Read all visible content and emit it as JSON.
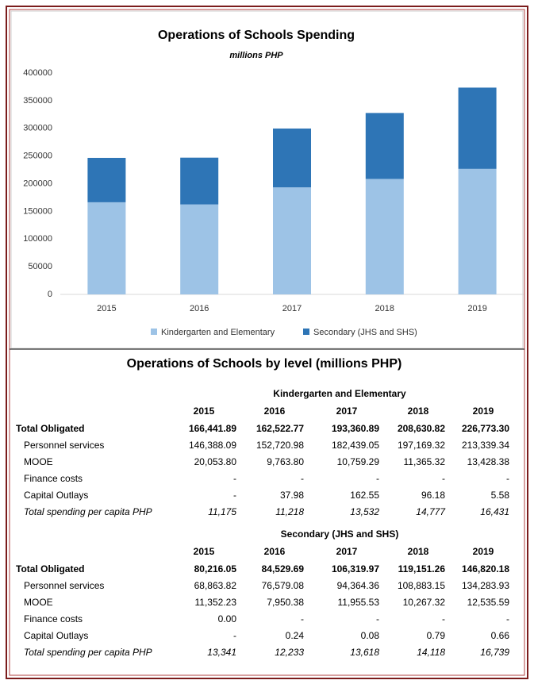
{
  "chart_data": {
    "type": "bar",
    "stacked": true,
    "title": "Operations of Schools Spending",
    "subtitle": "millions PHP",
    "categories": [
      "2015",
      "2016",
      "2017",
      "2018",
      "2019"
    ],
    "series": [
      {
        "name": "Kindergarten and Elementary",
        "color": "#9dc3e6",
        "values": [
          166441.89,
          162522.77,
          193360.89,
          208630.82,
          226773.3
        ]
      },
      {
        "name": "Secondary (JHS and SHS)",
        "color": "#2e75b6",
        "values": [
          80216.05,
          84529.69,
          106319.97,
          119151.26,
          146820.18
        ]
      }
    ],
    "ylim": [
      0,
      400000
    ],
    "yticks": [
      0,
      50000,
      100000,
      150000,
      200000,
      250000,
      300000,
      350000,
      400000
    ],
    "grid": false,
    "legend": "bottom"
  },
  "table": {
    "title": "Operations of Schools by level (millions PHP)",
    "sections": [
      {
        "heading": "Kindergarten and Elementary",
        "years": [
          "2015",
          "2016",
          "2017",
          "2018",
          "2019"
        ],
        "rows": [
          {
            "label": "Total Obligated",
            "cells": [
              "166,441.89",
              "162,522.77",
              "193,360.89",
              "208,630.82",
              "226,773.30"
            ]
          },
          {
            "label": "Personnel services",
            "cells": [
              "146,388.09",
              "152,720.98",
              "182,439.05",
              "197,169.32",
              "213,339.34"
            ]
          },
          {
            "label": "MOOE",
            "cells": [
              "20,053.80",
              "9,763.80",
              "10,759.29",
              "11,365.32",
              "13,428.38"
            ]
          },
          {
            "label": "Finance costs",
            "cells": [
              "-",
              "-",
              "-",
              "-",
              "-"
            ]
          },
          {
            "label": "Capital Outlays",
            "cells": [
              "-",
              "37.98",
              "162.55",
              "96.18",
              "5.58"
            ]
          },
          {
            "label": "Total spending per capita PHP",
            "cells": [
              "11,175",
              "11,218",
              "13,532",
              "14,777",
              "16,431"
            ]
          }
        ]
      },
      {
        "heading": "Secondary (JHS and SHS)",
        "years": [
          "2015",
          "2016",
          "2017",
          "2018",
          "2019"
        ],
        "rows": [
          {
            "label": "Total Obligated",
            "cells": [
              "80,216.05",
              "84,529.69",
              "106,319.97",
              "119,151.26",
              "146,820.18"
            ]
          },
          {
            "label": "Personnel services",
            "cells": [
              "68,863.82",
              "76,579.08",
              "94,364.36",
              "108,883.15",
              "134,283.93"
            ]
          },
          {
            "label": "MOOE",
            "cells": [
              "11,352.23",
              "7,950.38",
              "11,955.53",
              "10,267.32",
              "12,535.59"
            ]
          },
          {
            "label": "Finance costs",
            "cells": [
              "0.00",
              "-",
              "-",
              "-",
              "-"
            ]
          },
          {
            "label": "Capital Outlays",
            "cells": [
              "-",
              "0.24",
              "0.08",
              "0.79",
              "0.66"
            ]
          },
          {
            "label": "Total spending per capita PHP",
            "cells": [
              "13,341",
              "12,233",
              "13,618",
              "14,118",
              "16,739"
            ]
          }
        ]
      }
    ]
  }
}
